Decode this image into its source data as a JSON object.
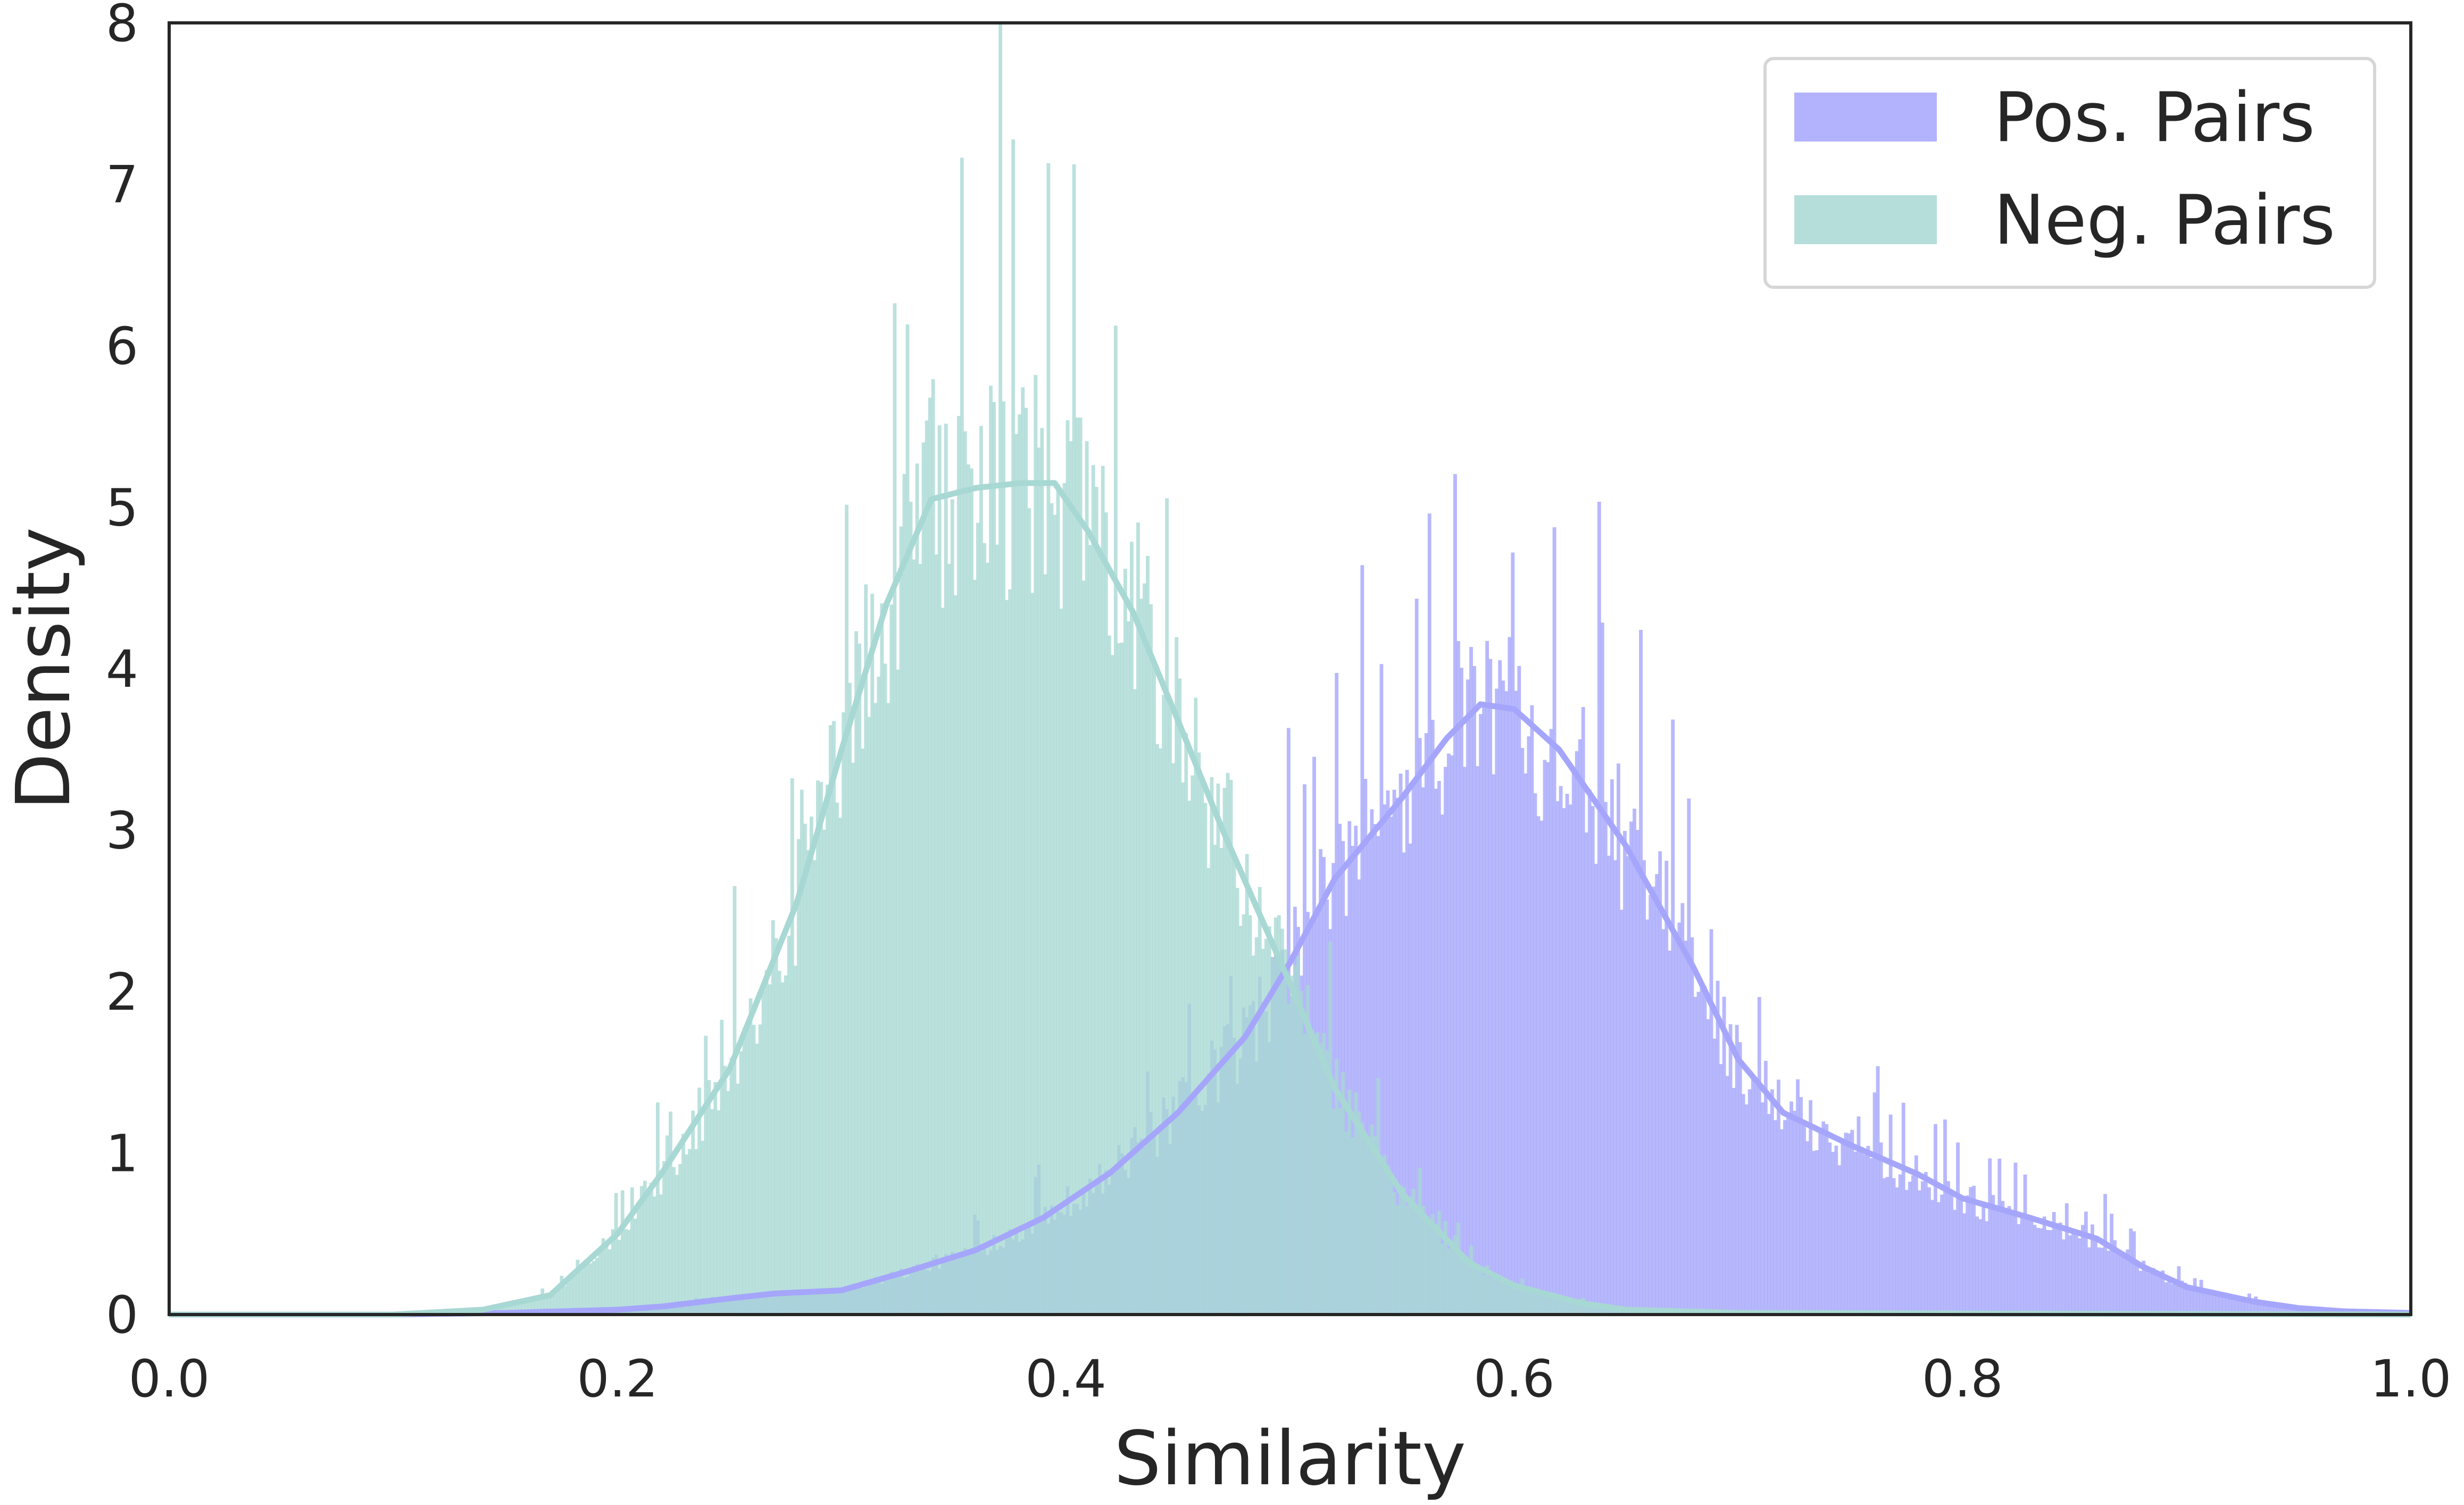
{
  "chart_data": {
    "type": "histogram",
    "title": "",
    "xlabel": "Similarity",
    "ylabel": "Density",
    "xlim": [
      0.0,
      1.0
    ],
    "ylim": [
      0,
      8
    ],
    "xticks": [
      "0.0",
      "0.2",
      "0.4",
      "0.6",
      "0.8",
      "1.0"
    ],
    "yticks": [
      "0",
      "1",
      "2",
      "3",
      "4",
      "5",
      "6",
      "7",
      "8"
    ],
    "grid": false,
    "legend_position": "top-right",
    "series": [
      {
        "name": "Pos. Pairs",
        "color": "#a5a6fb",
        "kde": {
          "x": [
            0.0,
            0.1,
            0.15,
            0.2,
            0.22,
            0.25,
            0.27,
            0.3,
            0.33,
            0.36,
            0.39,
            0.42,
            0.45,
            0.48,
            0.5,
            0.52,
            0.55,
            0.57,
            0.585,
            0.6,
            0.62,
            0.65,
            0.68,
            0.7,
            0.72,
            0.75,
            0.78,
            0.8,
            0.83,
            0.86,
            0.88,
            0.9,
            0.93,
            0.95,
            0.97,
            1.0
          ],
          "y": [
            0.0,
            0.0,
            0.01,
            0.03,
            0.05,
            0.1,
            0.13,
            0.15,
            0.27,
            0.4,
            0.6,
            0.88,
            1.25,
            1.72,
            2.18,
            2.7,
            3.2,
            3.57,
            3.78,
            3.75,
            3.5,
            2.9,
            2.15,
            1.58,
            1.25,
            1.05,
            0.87,
            0.72,
            0.6,
            0.47,
            0.3,
            0.17,
            0.08,
            0.04,
            0.02,
            0.01
          ]
        }
      },
      {
        "name": "Neg. Pairs",
        "color": "#a8d8d3",
        "kde": {
          "x": [
            0.0,
            0.1,
            0.14,
            0.17,
            0.2,
            0.22,
            0.25,
            0.28,
            0.3,
            0.32,
            0.34,
            0.36,
            0.38,
            0.395,
            0.41,
            0.43,
            0.45,
            0.47,
            0.5,
            0.52,
            0.55,
            0.58,
            0.6,
            0.63,
            0.65,
            0.7,
            1.0
          ],
          "y": [
            0.0,
            0.0,
            0.03,
            0.12,
            0.5,
            0.88,
            1.52,
            2.55,
            3.5,
            4.4,
            5.05,
            5.12,
            5.15,
            5.15,
            4.85,
            4.35,
            3.68,
            3.0,
            2.05,
            1.4,
            0.75,
            0.32,
            0.18,
            0.07,
            0.03,
            0.01,
            0.0
          ]
        }
      }
    ]
  }
}
